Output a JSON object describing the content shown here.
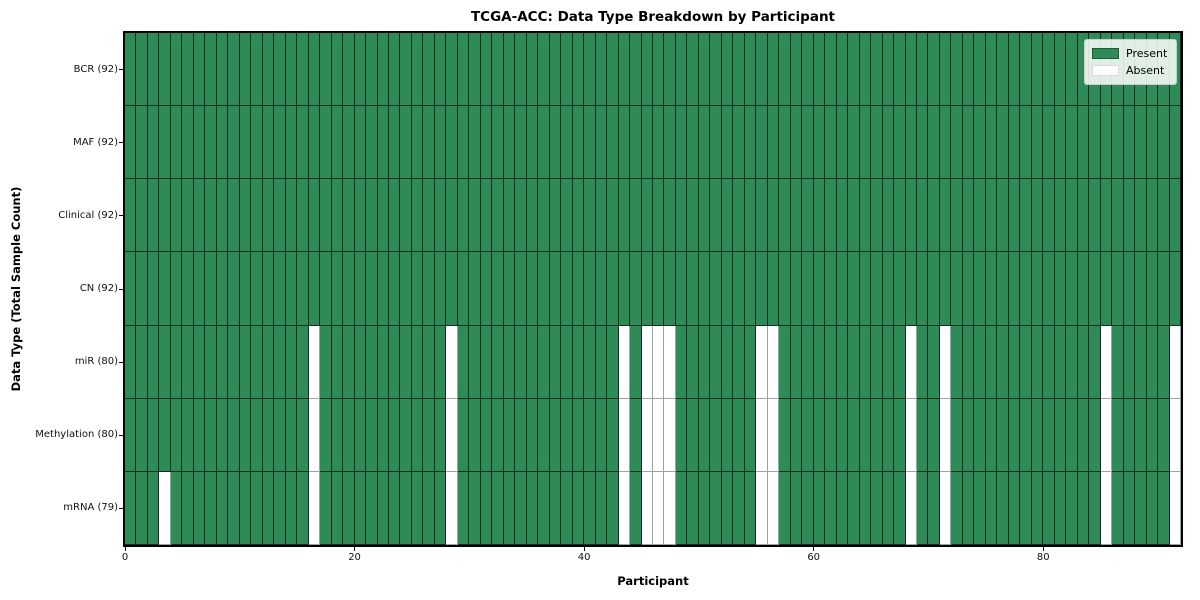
{
  "chart_data": {
    "type": "heatmap",
    "title": "TCGA-ACC: Data Type Breakdown by Participant",
    "xlabel": "Participant",
    "ylabel": "Data Type (Total Sample Count)",
    "n_participants": 92,
    "x_range": [
      0,
      92
    ],
    "x_ticks": [
      0,
      20,
      40,
      60,
      80
    ],
    "grid": true,
    "colors": {
      "present": "#2e8b57",
      "absent": "#ffffff",
      "cell_edge": "#1a1a1a",
      "background": "#ffffff"
    },
    "rows": [
      {
        "name": "BCR",
        "label": "BCR (92)",
        "present_count": 92,
        "absent_participants": []
      },
      {
        "name": "MAF",
        "label": "MAF (92)",
        "present_count": 92,
        "absent_participants": []
      },
      {
        "name": "Clinical",
        "label": "Clinical (92)",
        "present_count": 92,
        "absent_participants": []
      },
      {
        "name": "CN",
        "label": "CN (92)",
        "present_count": 92,
        "absent_participants": []
      },
      {
        "name": "miR",
        "label": "miR (80)",
        "present_count": 80,
        "absent_participants": [
          16,
          28,
          43,
          45,
          46,
          47,
          55,
          56,
          68,
          71,
          85,
          91
        ]
      },
      {
        "name": "Methylation",
        "label": "Methylation (80)",
        "present_count": 80,
        "absent_participants": [
          16,
          28,
          43,
          45,
          46,
          47,
          55,
          56,
          68,
          71,
          85,
          91
        ]
      },
      {
        "name": "mRNA",
        "label": "mRNA (79)",
        "present_count": 79,
        "absent_participants": [
          3,
          16,
          28,
          43,
          45,
          46,
          47,
          55,
          56,
          68,
          71,
          85,
          91
        ]
      }
    ],
    "legend": {
      "position": "upper right",
      "entries": [
        {
          "label": "Present",
          "color": "#2e8b57"
        },
        {
          "label": "Absent",
          "color": "#ffffff"
        }
      ]
    }
  }
}
